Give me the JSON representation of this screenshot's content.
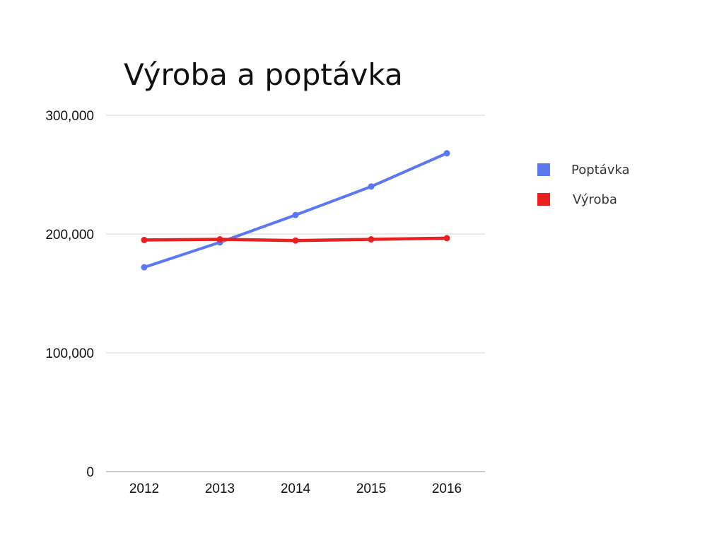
{
  "chart_data": {
    "type": "line",
    "title": "Výroba a poptávka",
    "xlabel": "",
    "ylabel": "",
    "categories": [
      "2012",
      "2013",
      "2014",
      "2015",
      "2016"
    ],
    "y_ticks": [
      "0",
      "100,000",
      "200,000",
      "300,000"
    ],
    "ylim": [
      0,
      300000
    ],
    "grid": true,
    "legend_position": "right",
    "series": [
      {
        "name": "Poptávka",
        "color": "#5b78ef",
        "values": [
          172000,
          193000,
          216000,
          240000,
          268000
        ]
      },
      {
        "name": "Výroba",
        "color": "#e82020",
        "values": [
          195000,
          195500,
          194500,
          195500,
          196500
        ]
      }
    ]
  }
}
